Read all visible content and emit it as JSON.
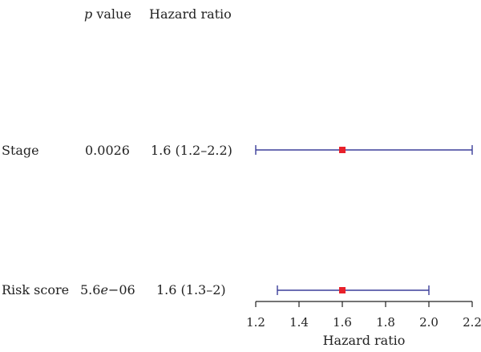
{
  "chart_data": {
    "type": "forest",
    "columns": {
      "p_symbol": "p",
      "p_suffix": " value",
      "hr": "Hazard ratio"
    },
    "rows": [
      {
        "label": "Stage",
        "p_value": "0.0026",
        "hr_text": "1.6 (1.2–2.2)",
        "hr": 1.6,
        "lower": 1.2,
        "upper": 2.2
      },
      {
        "label": "Risk score",
        "p_value_mantissa": "5.6",
        "p_value_e": "e",
        "p_value_exp": "−06",
        "hr_text": "1.6 (1.3–2)",
        "hr": 1.6,
        "lower": 1.3,
        "upper": 2.0
      }
    ],
    "xlabel": "Hazard ratio",
    "xlim": [
      1.2,
      2.2
    ],
    "xticks": [
      1.2,
      1.4,
      1.6,
      1.8,
      2.0,
      2.2
    ],
    "xtick_labels": [
      "1.2",
      "1.4",
      "1.6",
      "1.8",
      "2.0",
      "2.2"
    ],
    "colors": {
      "ci_line": "#3b3f9a",
      "point": "#e8202a",
      "axis": "#222222"
    }
  }
}
